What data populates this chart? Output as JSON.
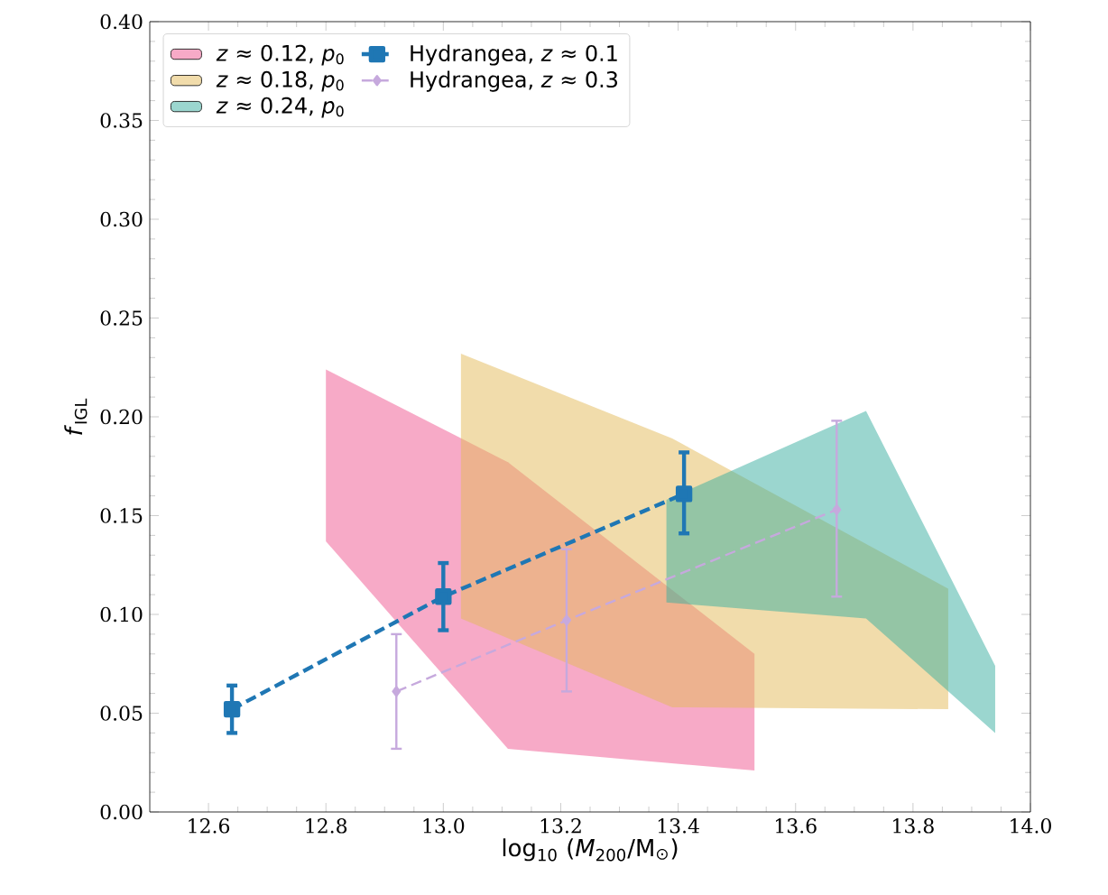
{
  "chart_data": {
    "type": "line",
    "xlabel": "log$_{10}$ (*M*$_{200}$/M$_{⊙}$)",
    "ylabel": "*f*$_{IGL}$",
    "xlim": [
      12.5,
      14.0
    ],
    "ylim": [
      0,
      0.4
    ],
    "xticks": [
      12.6,
      12.8,
      {
        "value": 13.0,
        "label": "13.0"
      },
      13.2,
      13.4,
      13.6,
      13.8,
      {
        "value": 14.0,
        "label": "14.0"
      }
    ],
    "yticks": [
      {
        "value": 0,
        "label": "0.00"
      },
      0.05,
      {
        "value": 0.1,
        "label": "0.10"
      },
      0.15,
      {
        "value": 0.2,
        "label": "0.20"
      },
      0.25,
      {
        "value": 0.3,
        "label": "0.30"
      },
      0.35,
      {
        "value": 0.4,
        "label": "0.40"
      }
    ],
    "legend": "top left",
    "series": [
      {
        "type": "area",
        "name": "*z* ≈ 0.12,  *p*$_{0}$",
        "color": "#ef558f",
        "x": [
          12.8,
          13.11,
          13.53
        ],
        "values": [
          null,
          null,
          null
        ],
        "lower": [
          0.137,
          0.032,
          0.021
        ],
        "upper": [
          0.224,
          0.177,
          0.08
        ]
      },
      {
        "type": "area",
        "name": "*z* ≈ 0.18,  *p*$_{0}$",
        "color": "#e3b957",
        "x": [
          13.03,
          13.39,
          13.86
        ],
        "values": [
          null,
          null,
          null
        ],
        "lower": [
          0.098,
          0.053,
          0.052
        ],
        "upper": [
          0.232,
          0.189,
          0.113
        ]
      },
      {
        "type": "area",
        "name": "*z* ≈ 0.24,  *p*$_{0}$",
        "color": "#37ad9f",
        "x": [
          13.38,
          13.72,
          13.94
        ],
        "values": [
          null,
          null,
          null
        ],
        "lower": [
          0.106,
          0.098,
          0.04
        ],
        "upper": [
          0.158,
          0.203,
          0.074
        ]
      },
      {
        "name": "Hydrangea, *z* ≈ 0.1",
        "color": "#1f77b4",
        "marker": "square",
        "line_style": "dashed",
        "x": [
          12.64,
          13.0,
          13.41
        ],
        "values": [
          0.052,
          0.109,
          0.161
        ],
        "errors": [
          [
            0.04,
            0.064
          ],
          [
            0.092,
            0.126
          ],
          [
            0.141,
            0.182
          ]
        ]
      },
      {
        "name": "Hydrangea, *z* ≈ 0.3",
        "color": "#c6a9dd",
        "marker": "diamond",
        "line_style": "dashed",
        "x": [
          12.92,
          13.21,
          13.67
        ],
        "values": [
          0.061,
          0.097,
          0.153
        ],
        "errors": [
          [
            0.032,
            0.09
          ],
          [
            0.061,
            0.133
          ],
          [
            0.109,
            0.198
          ]
        ]
      }
    ]
  }
}
